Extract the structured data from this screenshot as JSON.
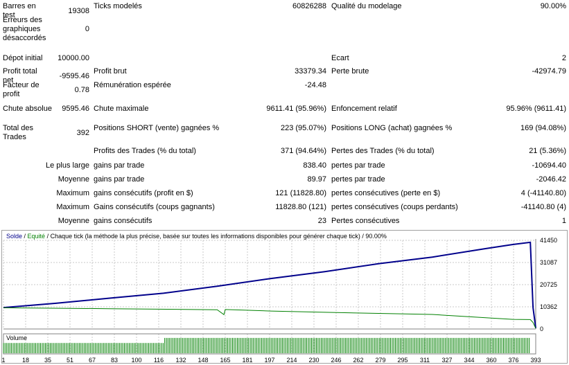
{
  "report": {
    "rows": [
      {
        "y": 3,
        "cells": [
          {
            "label": "Barres en test",
            "value": "19308"
          },
          {
            "label": "Ticks modelés",
            "value": "60826288"
          },
          {
            "label": "Qualité du modelage",
            "value": "90.00%"
          }
        ]
      },
      {
        "y": 23,
        "cells": [
          {
            "label": "Erreurs des graphiques désaccordés",
            "value": "0"
          }
        ]
      },
      {
        "y": 78,
        "cells": [
          {
            "label": "Dépot initial",
            "value": "10000.00"
          },
          null,
          {
            "label": "Ecart",
            "value": "2"
          }
        ]
      },
      {
        "y": 97,
        "cells": [
          {
            "label": "Profit total net",
            "value": "-9595.46"
          },
          {
            "label": "Profit brut",
            "value": "33379.34"
          },
          {
            "label": "Perte brute",
            "value": "-42974.79"
          }
        ]
      },
      {
        "y": 117,
        "cells": [
          {
            "label": "Facteur de profit",
            "value": "0.78"
          },
          {
            "label": "Rémunération espérée",
            "value": "-24.48"
          }
        ]
      },
      {
        "y": 151,
        "cells": [
          {
            "label": "Chute absolue",
            "value": "9595.46"
          },
          {
            "label": "Chute maximale",
            "value": "9611.41 (95.96%)"
          },
          {
            "label": "Enfoncement relatif",
            "value": "95.96% (9611.41)"
          }
        ]
      },
      {
        "y": 179,
        "cells": [
          {
            "label": "Total des Trades",
            "value": "392"
          },
          {
            "label": "Positions SHORT (vente) gagnées %",
            "value": "223 (95.07%)"
          },
          {
            "label": "Positions LONG (achat) gagnées %",
            "value": "169 (94.08%)"
          }
        ]
      },
      {
        "y": 212,
        "cells": [
          null,
          {
            "label": "Profits des Trades (% du total)",
            "value": "371 (94.64%)"
          },
          {
            "label": "Pertes des Trades (% du total)",
            "value": "21 (5.36%)"
          }
        ]
      },
      {
        "y": 233,
        "prefix": "Le plus large",
        "cells": [
          null,
          {
            "label": "gains par trade",
            "value": "838.40"
          },
          {
            "label": "pertes par trade",
            "value": "-10694.40"
          }
        ]
      },
      {
        "y": 253,
        "prefix": "Moyenne",
        "cells": [
          null,
          {
            "label": "gains par trade",
            "value": "89.97"
          },
          {
            "label": "pertes par trade",
            "value": "-2046.42"
          }
        ]
      },
      {
        "y": 273,
        "prefix": "Maximum",
        "cells": [
          null,
          {
            "label": "gains consécutifs (profit en $)",
            "value": "121 (11828.80)"
          },
          {
            "label": "pertes consécutives (perte en $)",
            "value": "4 (-41140.80)"
          }
        ]
      },
      {
        "y": 293,
        "prefix": "Maximum",
        "cells": [
          null,
          {
            "label": "Gains consécutifs (coups gagnants)",
            "value": "11828.80 (121)"
          },
          {
            "label": "pertes consécutives (coups perdants)",
            "value": "-41140.80 (4)"
          }
        ]
      },
      {
        "y": 313,
        "prefix": "Moyenne",
        "cells": [
          null,
          {
            "label": "gains consécutifs",
            "value": "23"
          },
          {
            "label": "Pertes consécutives",
            "value": "1"
          }
        ]
      }
    ]
  },
  "chart": {
    "legend": {
      "solde": "Solde",
      "sep1": " / ",
      "equite": "Equité",
      "rest": " / Chaque tick (la méthode la plus précise, basée sur toutes les informations disponibles pour générer chaque tick) / 90.00%"
    },
    "volume_label": "Volume",
    "colors": {
      "solde": "#00008b",
      "equite": "#008000",
      "volume": "#008000",
      "grid": "#c8c8c8",
      "axis": "#808080"
    }
  },
  "chart_data": {
    "type": "line",
    "title": "",
    "ylim": [
      0,
      41450
    ],
    "y_ticks": [
      "41450",
      "31087",
      "20725",
      "10362",
      "0"
    ],
    "x_ticks": [
      "1",
      "18",
      "35",
      "51",
      "67",
      "83",
      "100",
      "116",
      "132",
      "148",
      "165",
      "181",
      "197",
      "214",
      "230",
      "246",
      "262",
      "279",
      "295",
      "311",
      "327",
      "344",
      "360",
      "376",
      "393"
    ],
    "xlim": [
      1,
      397
    ],
    "series": [
      {
        "name": "Solde",
        "x": [
          1,
          40,
          80,
          120,
          160,
          200,
          240,
          280,
          320,
          360,
          380,
          393,
          395,
          397
        ],
        "y": [
          10000,
          12000,
          14400,
          16700,
          20000,
          23600,
          26800,
          30500,
          33600,
          37600,
          39500,
          40500,
          10000,
          404
        ]
      },
      {
        "name": "Equité",
        "x": [
          1,
          80,
          160,
          165,
          166,
          200,
          240,
          280,
          320,
          380,
          393,
          395,
          397
        ],
        "y": [
          9900,
          9500,
          9000,
          6700,
          9100,
          8400,
          7800,
          7300,
          6800,
          4500,
          4400,
          3000,
          300
        ]
      }
    ]
  }
}
